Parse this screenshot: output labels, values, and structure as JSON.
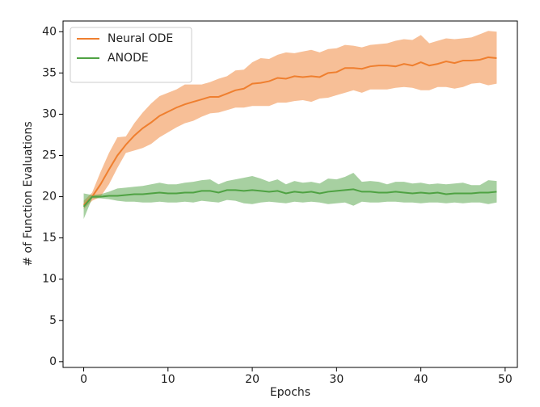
{
  "chart_data": {
    "type": "line",
    "xlabel": "Epochs",
    "ylabel": "# of Function Evaluations",
    "x": [
      0,
      1,
      2,
      3,
      4,
      5,
      6,
      7,
      8,
      9,
      10,
      11,
      12,
      13,
      14,
      15,
      16,
      17,
      18,
      19,
      20,
      21,
      22,
      23,
      24,
      25,
      26,
      27,
      28,
      29,
      30,
      31,
      32,
      33,
      34,
      35,
      36,
      37,
      38,
      39,
      40,
      41,
      42,
      43,
      44,
      45,
      46,
      47,
      48,
      49
    ],
    "xlim": [
      -2.45,
      51.45
    ],
    "xticks": [
      0,
      10,
      20,
      30,
      40,
      50
    ],
    "ylim": [
      -0.7,
      41.3
    ],
    "yticks": [
      0,
      5,
      10,
      15,
      20,
      25,
      30,
      35,
      40
    ],
    "legend": "upper left",
    "series": [
      {
        "name": "Neural ODE",
        "color": "#ef7f2f",
        "values": [
          19,
          20,
          21.5,
          23.3,
          25,
          26.3,
          27.4,
          28.3,
          29,
          29.8,
          30.3,
          30.8,
          31.2,
          31.5,
          31.8,
          32.1,
          32.1,
          32.5,
          32.9,
          33.1,
          33.7,
          33.8,
          34,
          34.4,
          34.3,
          34.6,
          34.5,
          34.6,
          34.5,
          35,
          35.1,
          35.6,
          35.6,
          35.5,
          35.8,
          35.9,
          35.9,
          35.8,
          36.1,
          35.9,
          36.3,
          35.9,
          36.1,
          36.4,
          36.2,
          36.5,
          36.5,
          36.6,
          36.9,
          36.8
        ],
        "upper": [
          19.5,
          20.5,
          23,
          25.3,
          27.2,
          27.3,
          28.9,
          30.2,
          31.3,
          32.2,
          32.6,
          33,
          33.6,
          33.6,
          33.6,
          33.9,
          34.3,
          34.6,
          35.3,
          35.4,
          36.3,
          36.8,
          36.7,
          37.2,
          37.5,
          37.4,
          37.6,
          37.8,
          37.5,
          37.9,
          38,
          38.4,
          38.3,
          38.1,
          38.4,
          38.5,
          38.6,
          38.9,
          39.1,
          39,
          39.6,
          38.6,
          38.9,
          39.2,
          39.1,
          39.2,
          39.3,
          39.7,
          40.1,
          40
        ],
        "lower": [
          18.5,
          19.5,
          20,
          21.5,
          23.5,
          25.3,
          25.6,
          25.9,
          26.4,
          27.2,
          27.8,
          28.4,
          28.9,
          29.2,
          29.7,
          30.1,
          30.2,
          30.5,
          30.8,
          30.8,
          31,
          31,
          31,
          31.4,
          31.4,
          31.6,
          31.7,
          31.5,
          31.9,
          32,
          32.3,
          32.6,
          32.9,
          32.6,
          33,
          33,
          33,
          33.2,
          33.3,
          33.2,
          32.9,
          32.9,
          33.3,
          33.3,
          33.1,
          33.3,
          33.7,
          33.8,
          33.5,
          33.7
        ]
      },
      {
        "name": "ANODE",
        "color": "#4fa243",
        "values": [
          18.8,
          20,
          20,
          20.1,
          20.1,
          20.2,
          20.3,
          20.3,
          20.4,
          20.5,
          20.4,
          20.4,
          20.5,
          20.5,
          20.7,
          20.7,
          20.5,
          20.8,
          20.8,
          20.7,
          20.8,
          20.7,
          20.6,
          20.7,
          20.4,
          20.6,
          20.5,
          20.6,
          20.4,
          20.6,
          20.7,
          20.8,
          20.9,
          20.6,
          20.6,
          20.5,
          20.5,
          20.6,
          20.5,
          20.4,
          20.5,
          20.4,
          20.5,
          20.3,
          20.4,
          20.4,
          20.4,
          20.5,
          20.5,
          20.6
        ],
        "upper": [
          20.4,
          20.2,
          20.3,
          20.6,
          21,
          21.1,
          21.2,
          21.3,
          21.5,
          21.7,
          21.5,
          21.5,
          21.7,
          21.8,
          22,
          22.1,
          21.5,
          21.9,
          22.1,
          22.3,
          22.5,
          22.2,
          21.8,
          22.1,
          21.5,
          21.9,
          21.7,
          21.8,
          21.6,
          22.2,
          22.1,
          22.4,
          22.9,
          21.8,
          21.9,
          21.8,
          21.5,
          21.8,
          21.8,
          21.6,
          21.7,
          21.5,
          21.6,
          21.5,
          21.6,
          21.7,
          21.4,
          21.4,
          22,
          21.9
        ],
        "lower": [
          17.3,
          19.8,
          19.8,
          19.7,
          19.5,
          19.4,
          19.4,
          19.3,
          19.3,
          19.4,
          19.3,
          19.3,
          19.4,
          19.3,
          19.5,
          19.4,
          19.3,
          19.6,
          19.5,
          19.2,
          19.1,
          19.3,
          19.4,
          19.3,
          19.2,
          19.4,
          19.3,
          19.4,
          19.3,
          19.1,
          19.2,
          19.3,
          18.9,
          19.4,
          19.3,
          19.3,
          19.4,
          19.4,
          19.3,
          19.3,
          19.2,
          19.3,
          19.3,
          19.2,
          19.3,
          19.2,
          19.3,
          19.3,
          19.1,
          19.3
        ]
      }
    ]
  }
}
